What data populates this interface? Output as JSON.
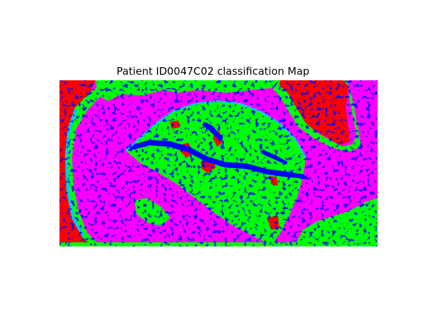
{
  "figure": {
    "title": "Patient ID0047C02 classification Map"
  },
  "classes": [
    {
      "name": "class-red",
      "color": "#ff0000"
    },
    {
      "name": "class-green",
      "color": "#00ff00"
    },
    {
      "name": "class-blue",
      "color": "#0000ff"
    },
    {
      "name": "class-magenta",
      "color": "#ff00ff"
    },
    {
      "name": "class-cyan",
      "color": "#00c8ff"
    }
  ],
  "background_color": "#ffffff"
}
